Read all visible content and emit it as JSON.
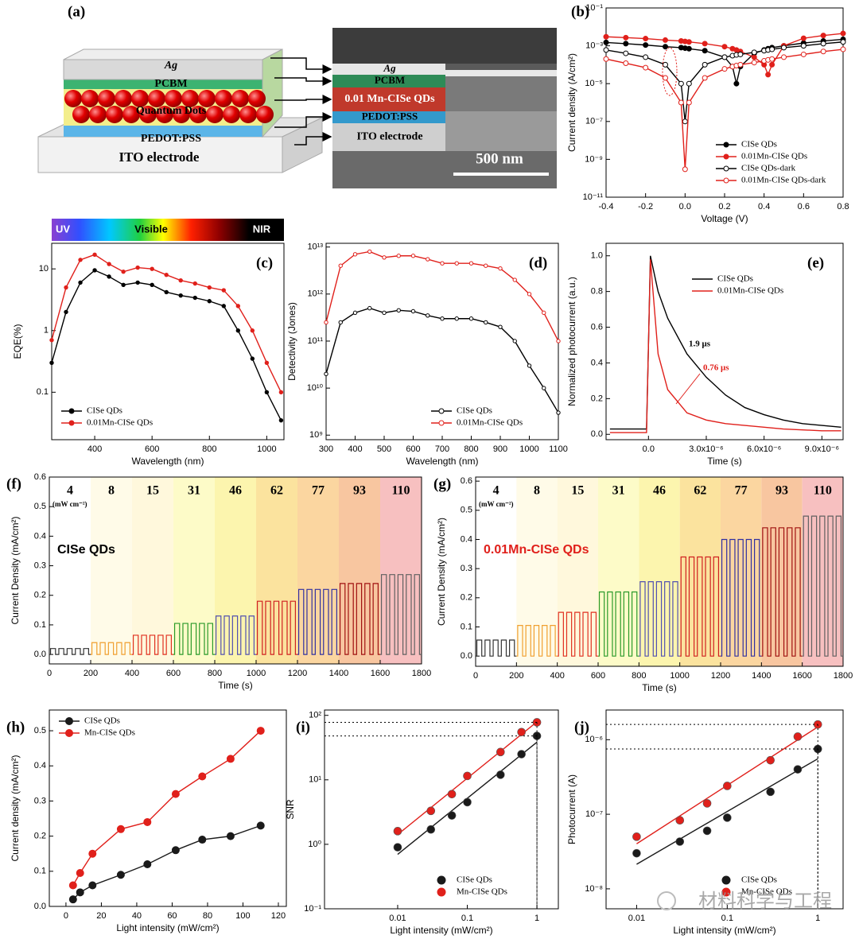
{
  "panel_a": {
    "label": "(a)",
    "device_layers": [
      "Ag",
      "PCBM",
      "Quantum Dots",
      "PEDOT:PSS",
      "ITO electrode"
    ],
    "sem_layers": [
      "Ag",
      "PCBM",
      "0.01 Mn-CISe QDs",
      "PEDOT:PSS",
      "ITO electrode"
    ],
    "scale_bar": "500 nm"
  },
  "watermark": "材料科学与工程",
  "chart_data": [
    {
      "type": "line",
      "label": "(b)",
      "xlabel": "Voltage (V)",
      "ylabel": "Current density (A/cm²)",
      "ylog": true,
      "x": [
        -0.4,
        -0.3,
        -0.2,
        -0.1,
        -0.02,
        0,
        0.02,
        0.1,
        0.2,
        0.24,
        0.26,
        0.28,
        0.35,
        0.4,
        0.42,
        0.44,
        0.5,
        0.6,
        0.7,
        0.8
      ],
      "xlim": [
        -0.4,
        0.8
      ],
      "xticks": [
        -0.4,
        -0.2,
        {
          "value": 0,
          "label": "0.0"
        },
        0.2,
        0.4,
        0.6,
        0.8
      ],
      "ylim": [
        1e-11,
        0.1
      ],
      "yticks": [
        {
          "value": 1e-11,
          "label": "10⁻¹¹"
        },
        {
          "value": 1e-09,
          "label": "10⁻⁹"
        },
        {
          "value": 1e-07,
          "label": "10⁻⁷"
        },
        {
          "value": 1e-05,
          "label": "10⁻⁵"
        },
        {
          "value": 0.001,
          "label": "10⁻³"
        },
        {
          "value": 0.1,
          "label": "10⁻¹"
        }
      ],
      "legend": "lower right",
      "series": [
        {
          "name": "CISe QDs",
          "color": "#000000",
          "filled": true,
          "values": [
            0.0015,
            0.0013,
            0.0011,
            0.0009,
            0.0008,
            0.00075,
            0.0007,
            0.00055,
            0.00025,
            8e-05,
            1e-05,
            8e-05,
            0.0004,
            0.0006,
            0.0007,
            0.0008,
            0.001,
            0.0014,
            0.0018,
            0.0022
          ]
        },
        {
          "name": "0.01Mn-CISe QDs",
          "color": "#e0201b",
          "filled": true,
          "values": [
            0.003,
            0.0027,
            0.0024,
            0.002,
            0.0018,
            0.0017,
            0.0016,
            0.0013,
            0.0009,
            0.0007,
            0.0006,
            0.0005,
            0.00025,
            0.0001,
            3e-05,
            0.0001,
            0.001,
            0.0025,
            0.0035,
            0.0045
          ]
        },
        {
          "name": "CISe QDs-dark",
          "color": "#000000",
          "filled": false,
          "values": [
            0.0006,
            0.0004,
            0.00025,
            0.0001,
            1e-05,
            1e-07,
            1e-05,
            0.0001,
            0.00025,
            0.0003,
            0.00033,
            0.00035,
            0.00045,
            0.00055,
            0.0006,
            0.00065,
            0.0008,
            0.001,
            0.0013,
            0.0016
          ]
        },
        {
          "name": "0.01Mn-CISe QDs-dark",
          "color": "#e0201b",
          "filled": false,
          "values": [
            0.0002,
            0.00012,
            7e-05,
            2e-05,
            1e-06,
            3e-10,
            1e-06,
            2e-05,
            6e-05,
            8e-05,
            9e-05,
            0.0001,
            0.00013,
            0.00016,
            0.00018,
            0.0002,
            0.00025,
            0.00035,
            0.0005,
            0.00065
          ]
        }
      ]
    },
    {
      "type": "line",
      "label": "(c)",
      "xlabel": "Wavelength (nm)",
      "ylabel": "EQE(%)",
      "ylog": true,
      "spectrum_labels": [
        "UV",
        "Visible",
        "NIR"
      ],
      "x": [
        250,
        300,
        350,
        400,
        450,
        500,
        550,
        600,
        650,
        700,
        750,
        800,
        850,
        900,
        950,
        1000,
        1050
      ],
      "xlim": [
        250,
        1060
      ],
      "xticks": [
        400,
        600,
        800,
        1000
      ],
      "ylim": [
        0.017,
        26
      ],
      "yticks": [
        0.1,
        1,
        10
      ],
      "legend": "lower left",
      "series": [
        {
          "name": "CISe QDs",
          "color": "#000000",
          "filled": true,
          "values": [
            0.3,
            2,
            6,
            9.5,
            7.5,
            5.5,
            6,
            5.5,
            4.2,
            3.7,
            3.4,
            3,
            2.5,
            1,
            0.35,
            0.1,
            0.035
          ]
        },
        {
          "name": "0.01Mn-CISe QDs",
          "color": "#e0201b",
          "filled": true,
          "values": [
            0.7,
            5,
            14,
            17,
            12,
            9,
            10.5,
            10,
            8,
            6.5,
            5.8,
            5,
            4.5,
            2.5,
            1,
            0.3,
            0.1
          ]
        }
      ]
    },
    {
      "type": "line",
      "label": "(d)",
      "xlabel": "Wavelength (nm)",
      "ylabel": "Detectivity (Jones)",
      "ylog": true,
      "x": [
        300,
        350,
        400,
        450,
        500,
        550,
        600,
        650,
        700,
        750,
        800,
        850,
        900,
        950,
        1000,
        1050,
        1100
      ],
      "xlim": [
        300,
        1100
      ],
      "xticks": [
        300,
        400,
        500,
        600,
        700,
        800,
        900,
        1000,
        1100
      ],
      "ylim": [
        800000000.0,
        12000000000000.0
      ],
      "yticks": [
        {
          "value": 1000000000.0,
          "label": "10⁹"
        },
        {
          "value": 10000000000.0,
          "label": "10¹⁰"
        },
        {
          "value": 100000000000.0,
          "label": "10¹¹"
        },
        {
          "value": 1000000000000.0,
          "label": "10¹²"
        },
        {
          "value": 10000000000000.0,
          "label": "10¹³"
        }
      ],
      "legend": "lower right",
      "series": [
        {
          "name": "CISe QDs",
          "color": "#000000",
          "filled": false,
          "values": [
            20000000000.0,
            250000000000.0,
            400000000000.0,
            500000000000.0,
            400000000000.0,
            450000000000.0,
            430000000000.0,
            350000000000.0,
            300000000000.0,
            300000000000.0,
            300000000000.0,
            250000000000.0,
            200000000000.0,
            100000000000.0,
            30000000000.0,
            10000000000.0,
            3000000000.0
          ]
        },
        {
          "name": "0.01Mn-CISe QDs",
          "color": "#e0201b",
          "filled": false,
          "values": [
            250000000000.0,
            4000000000000.0,
            7000000000000.0,
            8000000000000.0,
            6000000000000.0,
            6500000000000.0,
            6500000000000.0,
            5500000000000.0,
            4500000000000.0,
            4500000000000.0,
            4500000000000.0,
            4000000000000.0,
            3500000000000.0,
            2000000000000.0,
            1000000000000.0,
            400000000000.0,
            100000000000.0
          ]
        }
      ]
    },
    {
      "type": "line",
      "label": "(e)",
      "xlabel": "Time (s)",
      "ylabel": "Normalized photocurrent (a.u.)",
      "markers": false,
      "annotations": [
        "1.9 μs",
        "0.76 μs"
      ],
      "x": [
        -2e-06,
        -1e-06,
        -1e-07,
        0,
        1e-07,
        5e-07,
        1e-06,
        2e-06,
        3e-06,
        4e-06,
        5e-06,
        6e-06,
        7e-06,
        8e-06,
        9e-06,
        1e-05
      ],
      "xlim": [
        -2.2e-06,
        1.01e-05
      ],
      "xticks": [
        {
          "value": 0,
          "label": "0.0"
        },
        {
          "value": 3e-06,
          "label": "3.0x10⁻⁶"
        },
        {
          "value": 6e-06,
          "label": "6.0x10⁻⁶"
        },
        {
          "value": 9e-06,
          "label": "9.0x10⁻⁶"
        }
      ],
      "ylim": [
        -0.03,
        1.07
      ],
      "yticks": [
        {
          "value": 0,
          "label": "0.0"
        },
        0.2,
        0.4,
        0.6,
        0.8,
        {
          "value": 1,
          "label": "1.0"
        }
      ],
      "legend": "upper right",
      "series": [
        {
          "name": "CISe QDs",
          "color": "#000000",
          "values": [
            0.03,
            0.03,
            0.03,
            0.5,
            1.0,
            0.8,
            0.65,
            0.45,
            0.32,
            0.22,
            0.15,
            0.11,
            0.08,
            0.06,
            0.05,
            0.04
          ]
        },
        {
          "name": "0.01Mn-CISe QDs",
          "color": "#e0201b",
          "values": [
            0.01,
            0.01,
            0.01,
            0.5,
            0.98,
            0.45,
            0.25,
            0.12,
            0.08,
            0.06,
            0.05,
            0.04,
            0.03,
            0.025,
            0.02,
            0.02
          ]
        }
      ]
    },
    {
      "type": "pulse",
      "label": "(f)",
      "xlabel": "Time (s)",
      "ylabel": "Current Density (mA/cm²)",
      "xlim": [
        0,
        1800
      ],
      "xticks": [
        0,
        200,
        400,
        600,
        800,
        1000,
        1200,
        1400,
        1600,
        1800
      ],
      "ylim": [
        -0.032,
        0.6
      ],
      "yticks": [
        {
          "value": 0,
          "label": "0.0"
        },
        0.1,
        0.2,
        0.3,
        0.4,
        0.5,
        0.6
      ],
      "intensities": [
        4,
        8,
        15,
        31,
        46,
        62,
        77,
        93,
        110
      ],
      "unit": "(mW cm⁻²)",
      "series_label": "CISe QDs",
      "series_label_color": "#000000",
      "values": [
        0.02,
        0.04,
        0.065,
        0.105,
        0.13,
        0.18,
        0.22,
        0.24,
        0.27
      ],
      "colors": [
        "#333333",
        "#f0a030",
        "#e03020",
        "#2a9a2a",
        "#5050b0",
        "#d02020",
        "#3030a0",
        "#a01010",
        "#606060"
      ],
      "band_colors": [
        "#ffffff",
        "#fffbe8",
        "#fff8dc",
        "#fdfbc8",
        "#fcf5ae",
        "#fbe39e",
        "#fbd6a0",
        "#f8c6a0",
        "#f7c0c0"
      ]
    },
    {
      "type": "pulse",
      "label": "(g)",
      "xlabel": "Time (s)",
      "ylabel": "Current Density (mA/cm²)",
      "xlim": [
        0,
        1800
      ],
      "xticks": [
        0,
        200,
        400,
        600,
        800,
        1000,
        1200,
        1400,
        1600,
        1800
      ],
      "ylim": [
        -0.035,
        0.614
      ],
      "yticks": [
        {
          "value": 0,
          "label": "0.0"
        },
        0.1,
        0.2,
        0.3,
        0.4,
        0.5,
        0.6
      ],
      "intensities": [
        4,
        8,
        15,
        31,
        46,
        62,
        77,
        93,
        110
      ],
      "unit": "(mW cm⁻²)",
      "series_label": "0.01Mn-CISe QDs",
      "series_label_color": "#e0201b",
      "values": [
        0.055,
        0.105,
        0.15,
        0.22,
        0.255,
        0.34,
        0.4,
        0.44,
        0.48
      ],
      "colors": [
        "#333333",
        "#f0a030",
        "#e03020",
        "#2a9a2a",
        "#5050b0",
        "#d02020",
        "#3030a0",
        "#a01010",
        "#606060"
      ],
      "band_colors": [
        "#ffffff",
        "#fffbe8",
        "#fff8dc",
        "#fdfbc8",
        "#fcf5ae",
        "#fbe39e",
        "#fbd6a0",
        "#f8c6a0",
        "#f7c0c0"
      ]
    },
    {
      "type": "line",
      "label": "(h)",
      "xlabel": "Light intensity (mW/cm²)",
      "ylabel": "Current density (mA/cm²)",
      "x": [
        4,
        8,
        15,
        31,
        46,
        62,
        77,
        93,
        110
      ],
      "xlim": [
        -9.4,
        124.5
      ],
      "xticks": [
        0,
        20,
        40,
        60,
        80,
        100,
        120
      ],
      "ylim": [
        0,
        0.559
      ],
      "yticks": [
        {
          "value": 0,
          "label": "0.0"
        },
        0.1,
        0.2,
        0.3,
        0.4,
        0.5
      ],
      "legend": "upper left",
      "series": [
        {
          "name": "CISe QDs",
          "color": "#1a1a1a",
          "filled": true,
          "values": [
            0.02,
            0.04,
            0.06,
            0.09,
            0.12,
            0.16,
            0.19,
            0.2,
            0.23
          ]
        },
        {
          "name": "Mn-CISe QDs",
          "color": "#e0201b",
          "filled": true,
          "values": [
            0.06,
            0.095,
            0.15,
            0.22,
            0.24,
            0.32,
            0.37,
            0.42,
            0.5
          ]
        }
      ]
    },
    {
      "type": "scatter",
      "label": "(i)",
      "xlabel": "Light intensity (mW/cm²)",
      "ylabel": "SNR",
      "xlog": true,
      "ylog": true,
      "fit": true,
      "guides": true,
      "x": [
        0.01,
        0.03,
        0.06,
        0.1,
        0.3,
        0.6,
        1
      ],
      "xlim": [
        0.00089,
        2.03
      ],
      "xticks": [
        0.01,
        0.1,
        1
      ],
      "ylim": [
        0.1,
        121
      ],
      "yticks": [
        {
          "value": 0.1,
          "label": "10⁻¹"
        },
        {
          "value": 1,
          "label": "10⁰"
        },
        {
          "value": 10,
          "label": "10¹"
        },
        {
          "value": 100,
          "label": "10²"
        }
      ],
      "legend": "lower right",
      "series": [
        {
          "name": "CISe QDs",
          "color": "#1a1a1a",
          "values": [
            0.9,
            1.7,
            2.8,
            4.5,
            12,
            25,
            48
          ]
        },
        {
          "name": "Mn-CISe QDs",
          "color": "#e0201b",
          "values": [
            1.6,
            3.3,
            6,
            11.5,
            27,
            55,
            78
          ]
        }
      ]
    },
    {
      "type": "scatter",
      "label": "(j)",
      "xlabel": "Light intensity (mW/cm²)",
      "ylabel": "Photocurrent (A)",
      "xlog": true,
      "ylog": true,
      "fit": true,
      "guides": true,
      "x": [
        0.01,
        0.03,
        0.06,
        0.1,
        0.3,
        0.6,
        1
      ],
      "xlim": [
        0.0046,
        1.9
      ],
      "xticks": [
        0.01,
        0.1,
        1
      ],
      "ylim": [
        5.4e-09,
        2.5e-06
      ],
      "yticks": [
        {
          "value": 1e-08,
          "label": "10⁻⁸"
        },
        {
          "value": 1e-07,
          "label": "10⁻⁷"
        },
        {
          "value": 1e-06,
          "label": "10⁻⁶"
        }
      ],
      "legend": "lower right",
      "series": [
        {
          "name": "CISe QDs",
          "color": "#1a1a1a",
          "values": [
            3e-08,
            4.3e-08,
            6e-08,
            9e-08,
            2e-07,
            4e-07,
            7.5e-07
          ]
        },
        {
          "name": "Mn-CISe QDs",
          "color": "#e0201b",
          "values": [
            5e-08,
            8.3e-08,
            1.4e-07,
            2.4e-07,
            5.3e-07,
            1.1e-06,
            1.6e-06
          ]
        }
      ]
    }
  ]
}
